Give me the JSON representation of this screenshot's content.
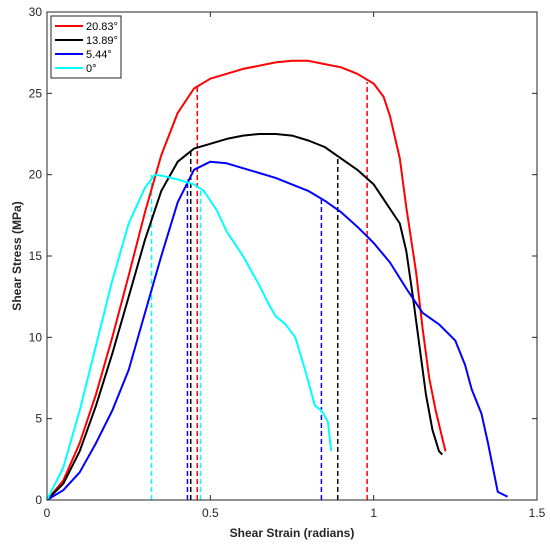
{
  "chart_data": {
    "type": "line",
    "xlabel": "Shear Strain (radians)",
    "ylabel": "Shear Stress (MPa)",
    "xlim": [
      0,
      1.5
    ],
    "ylim": [
      0,
      30
    ],
    "xticks": [
      0,
      0.5,
      1,
      1.5
    ],
    "xtick_labels": [
      "0",
      "0.5",
      "1",
      "1.5"
    ],
    "yticks": [
      0,
      5,
      10,
      15,
      20,
      25,
      30
    ],
    "ytick_labels": [
      "0",
      "5",
      "10",
      "15",
      "20",
      "25",
      "30"
    ],
    "grid": false,
    "legend_position": "top-left",
    "series": [
      {
        "name": "20.83°",
        "color": "#ff0000",
        "points": [
          [
            0,
            0
          ],
          [
            0.05,
            1.2
          ],
          [
            0.1,
            3.5
          ],
          [
            0.15,
            6.5
          ],
          [
            0.2,
            10
          ],
          [
            0.25,
            13.8
          ],
          [
            0.3,
            17.7
          ],
          [
            0.35,
            21.2
          ],
          [
            0.4,
            23.8
          ],
          [
            0.45,
            25.3
          ],
          [
            0.5,
            25.9
          ],
          [
            0.55,
            26.2
          ],
          [
            0.6,
            26.5
          ],
          [
            0.65,
            26.7
          ],
          [
            0.7,
            26.9
          ],
          [
            0.75,
            27.0
          ],
          [
            0.8,
            27.0
          ],
          [
            0.85,
            26.8
          ],
          [
            0.9,
            26.6
          ],
          [
            0.95,
            26.2
          ],
          [
            1.0,
            25.6
          ],
          [
            1.03,
            24.8
          ],
          [
            1.05,
            23.6
          ],
          [
            1.08,
            21.0
          ],
          [
            1.1,
            18.0
          ],
          [
            1.13,
            14.0
          ],
          [
            1.15,
            10.5
          ],
          [
            1.17,
            7.5
          ],
          [
            1.19,
            5.5
          ],
          [
            1.21,
            3.8
          ],
          [
            1.22,
            3.0
          ]
        ]
      },
      {
        "name": "13.89°",
        "color": "#000000",
        "points": [
          [
            0,
            0
          ],
          [
            0.05,
            1.0
          ],
          [
            0.1,
            3.0
          ],
          [
            0.15,
            5.8
          ],
          [
            0.2,
            9.0
          ],
          [
            0.25,
            12.5
          ],
          [
            0.3,
            16.0
          ],
          [
            0.35,
            19.0
          ],
          [
            0.4,
            20.8
          ],
          [
            0.45,
            21.6
          ],
          [
            0.5,
            21.9
          ],
          [
            0.55,
            22.2
          ],
          [
            0.6,
            22.4
          ],
          [
            0.65,
            22.5
          ],
          [
            0.7,
            22.5
          ],
          [
            0.75,
            22.4
          ],
          [
            0.8,
            22.1
          ],
          [
            0.85,
            21.7
          ],
          [
            0.9,
            21.0
          ],
          [
            0.95,
            20.3
          ],
          [
            1.0,
            19.4
          ],
          [
            1.03,
            18.5
          ],
          [
            1.05,
            17.9
          ],
          [
            1.08,
            17.0
          ],
          [
            1.1,
            15.3
          ],
          [
            1.12,
            12.5
          ],
          [
            1.14,
            9.5
          ],
          [
            1.16,
            6.5
          ],
          [
            1.18,
            4.3
          ],
          [
            1.2,
            3.0
          ],
          [
            1.21,
            2.8
          ]
        ]
      },
      {
        "name": "5.44°",
        "color": "#0000ff",
        "points": [
          [
            0,
            0
          ],
          [
            0.05,
            0.6
          ],
          [
            0.1,
            1.7
          ],
          [
            0.15,
            3.5
          ],
          [
            0.2,
            5.5
          ],
          [
            0.25,
            8.0
          ],
          [
            0.3,
            11.5
          ],
          [
            0.35,
            15.0
          ],
          [
            0.4,
            18.3
          ],
          [
            0.45,
            20.3
          ],
          [
            0.5,
            20.8
          ],
          [
            0.55,
            20.7
          ],
          [
            0.6,
            20.4
          ],
          [
            0.65,
            20.1
          ],
          [
            0.7,
            19.8
          ],
          [
            0.75,
            19.4
          ],
          [
            0.8,
            19.0
          ],
          [
            0.85,
            18.4
          ],
          [
            0.9,
            17.7
          ],
          [
            0.95,
            16.8
          ],
          [
            1.0,
            15.8
          ],
          [
            1.05,
            14.6
          ],
          [
            1.1,
            13.0
          ],
          [
            1.15,
            11.5
          ],
          [
            1.2,
            10.8
          ],
          [
            1.25,
            9.8
          ],
          [
            1.28,
            8.3
          ],
          [
            1.3,
            6.8
          ],
          [
            1.33,
            5.3
          ],
          [
            1.35,
            3.5
          ],
          [
            1.37,
            1.5
          ],
          [
            1.38,
            0.5
          ],
          [
            1.4,
            0.3
          ],
          [
            1.41,
            0.2
          ]
        ]
      },
      {
        "name": "0°",
        "color": "#00ffff",
        "points": [
          [
            0,
            0
          ],
          [
            0.05,
            2.0
          ],
          [
            0.1,
            5.5
          ],
          [
            0.15,
            9.5
          ],
          [
            0.2,
            13.5
          ],
          [
            0.25,
            17.0
          ],
          [
            0.3,
            19.2
          ],
          [
            0.33,
            20.0
          ],
          [
            0.36,
            19.9
          ],
          [
            0.4,
            19.7
          ],
          [
            0.45,
            19.4
          ],
          [
            0.48,
            19.0
          ],
          [
            0.52,
            17.8
          ],
          [
            0.55,
            16.5
          ],
          [
            0.6,
            15.0
          ],
          [
            0.65,
            13.2
          ],
          [
            0.68,
            12.0
          ],
          [
            0.7,
            11.3
          ],
          [
            0.73,
            10.8
          ],
          [
            0.76,
            10.0
          ],
          [
            0.79,
            8.0
          ],
          [
            0.82,
            5.8
          ],
          [
            0.84,
            5.5
          ],
          [
            0.86,
            4.8
          ],
          [
            0.87,
            3.0
          ]
        ]
      }
    ],
    "reference_lines": [
      {
        "series": "0°",
        "x": 0.32,
        "y_top": 20.0
      },
      {
        "series": "0°",
        "x": 0.47,
        "y_top": 19.1
      },
      {
        "series": "5.44°",
        "x": 0.43,
        "y_top": 19.7
      },
      {
        "series": "5.44°",
        "x": 0.84,
        "y_top": 18.5
      },
      {
        "series": "13.89°",
        "x": 0.44,
        "y_top": 21.5
      },
      {
        "series": "13.89°",
        "x": 0.89,
        "y_top": 21.2
      },
      {
        "series": "20.83°",
        "x": 0.46,
        "y_top": 25.4
      },
      {
        "series": "20.83°",
        "x": 0.98,
        "y_top": 25.7
      }
    ]
  }
}
